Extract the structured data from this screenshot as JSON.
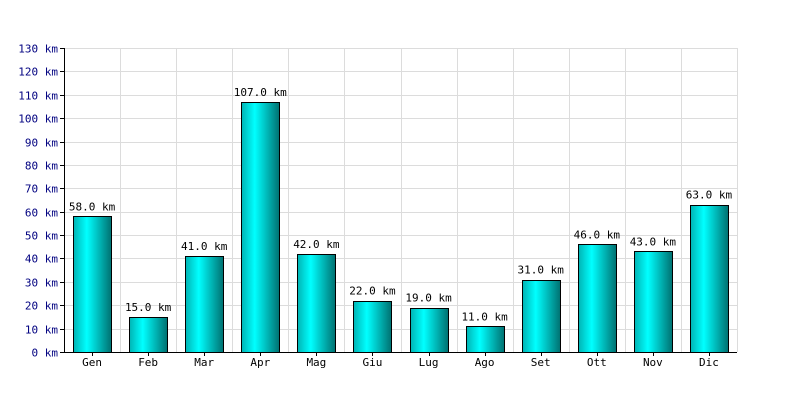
{
  "chart_data": {
    "type": "bar",
    "title": "",
    "xlabel": "",
    "ylabel": "",
    "unit": "km",
    "categories": [
      "Gen",
      "Feb",
      "Mar",
      "Apr",
      "Mag",
      "Giu",
      "Lug",
      "Ago",
      "Set",
      "Ott",
      "Nov",
      "Dic"
    ],
    "values": [
      58.0,
      15.0,
      41.0,
      107.0,
      42.0,
      22.0,
      19.0,
      11.0,
      31.0,
      46.0,
      43.0,
      63.0
    ],
    "data_labels": [
      "58.0 km",
      "15.0 km",
      "41.0 km",
      "107.0 km",
      "42.0 km",
      "22.0 km",
      "19.0 km",
      "11.0 km",
      "31.0 km",
      "46.0 km",
      "43.0 km",
      "63.0 km"
    ],
    "y_ticks": [
      0,
      10,
      20,
      30,
      40,
      50,
      60,
      70,
      80,
      90,
      100,
      110,
      120,
      130
    ],
    "y_tick_labels": [
      "0 km",
      "10 km",
      "20 km",
      "30 km",
      "40 km",
      "50 km",
      "60 km",
      "70 km",
      "80 km",
      "90 km",
      "100 km",
      "110 km",
      "120 km",
      "130 km"
    ],
    "ylim": [
      0,
      130
    ],
    "grid": true,
    "legend": "none",
    "colors": {
      "bar_light": "#00ffff",
      "bar_mid": "#00b4b4",
      "bar_dark": "#007070",
      "bar_border": "#000000",
      "grid": "#dcdcdc",
      "axis": "#000000",
      "y_tick_text": "#000080"
    }
  }
}
